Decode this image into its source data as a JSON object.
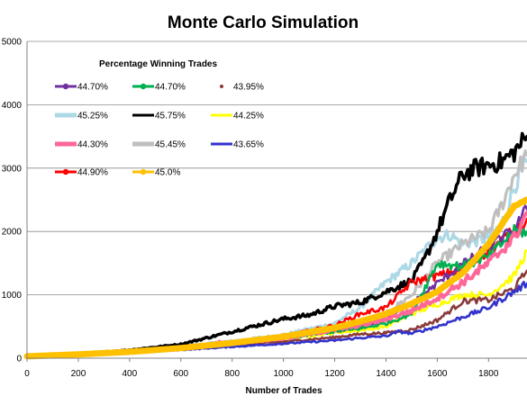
{
  "chart_data": {
    "type": "line",
    "title": "Monte Carlo Simulation",
    "xlabel": "Number of Trades",
    "ylabel": "",
    "xlim": [
      0,
      1950
    ],
    "ylim": [
      0,
      5000
    ],
    "x_ticks": [
      "0",
      "200",
      "400",
      "600",
      "800",
      "1000",
      "1200",
      "1400",
      "1600",
      "1800"
    ],
    "y_ticks": [
      "0",
      "1000",
      "2000",
      "3000",
      "4000",
      "5000"
    ],
    "grid": "horizontal",
    "legend": {
      "title": "Percentage Winning Trades",
      "placement": "top-left"
    },
    "series": [
      {
        "name": "44.70%",
        "color": "#7030A0",
        "marker": "circle",
        "x": [
          0,
          200,
          400,
          600,
          800,
          1000,
          1200,
          1300,
          1400,
          1500,
          1600,
          1700,
          1800,
          1900,
          1950
        ],
        "y": [
          30,
          60,
          100,
          160,
          240,
          330,
          430,
          490,
          620,
          850,
          1180,
          1480,
          1750,
          2020,
          2350
        ]
      },
      {
        "name": "44.70%",
        "color": "#00B050",
        "marker": "circle",
        "x": [
          0,
          200,
          400,
          600,
          800,
          1000,
          1200,
          1300,
          1400,
          1500,
          1600,
          1700,
          1800,
          1900,
          1950
        ],
        "y": [
          30,
          60,
          100,
          150,
          230,
          310,
          420,
          470,
          550,
          700,
          1500,
          1450,
          1600,
          2000,
          2000
        ]
      },
      {
        "name": "43.95%",
        "color": "#8B3A3A",
        "marker": "dot",
        "x": [
          0,
          200,
          400,
          600,
          800,
          1000,
          1200,
          1300,
          1400,
          1500,
          1600,
          1700,
          1800,
          1900,
          1950
        ],
        "y": [
          30,
          60,
          90,
          140,
          200,
          260,
          330,
          380,
          400,
          450,
          600,
          900,
          920,
          1100,
          1380
        ]
      },
      {
        "name": "45.25%",
        "color": "#ADD8E6",
        "marker": "none",
        "x": [
          0,
          200,
          400,
          600,
          800,
          1000,
          1200,
          1300,
          1400,
          1500,
          1550,
          1600,
          1650,
          1700,
          1800,
          1850,
          1900,
          1950
        ],
        "y": [
          30,
          70,
          120,
          190,
          270,
          370,
          550,
          800,
          1200,
          1500,
          1700,
          1900,
          1950,
          1800,
          1900,
          2100,
          2700,
          3100
        ]
      },
      {
        "name": "45.75%",
        "color": "#000000",
        "marker": "none",
        "x": [
          0,
          200,
          400,
          600,
          800,
          1000,
          1100,
          1200,
          1300,
          1400,
          1500,
          1550,
          1600,
          1650,
          1700,
          1750,
          1800,
          1850,
          1900,
          1950
        ],
        "y": [
          30,
          70,
          130,
          220,
          420,
          620,
          680,
          820,
          880,
          1050,
          1220,
          1550,
          2000,
          2500,
          2900,
          3000,
          3050,
          3100,
          3250,
          3500
        ]
      },
      {
        "name": "44.25%",
        "color": "#FFFF00",
        "marker": "none",
        "x": [
          0,
          200,
          400,
          600,
          800,
          1000,
          1200,
          1300,
          1400,
          1500,
          1600,
          1700,
          1800,
          1900,
          1950
        ],
        "y": [
          30,
          60,
          100,
          150,
          220,
          300,
          400,
          440,
          500,
          700,
          850,
          1000,
          1000,
          1300,
          1700
        ]
      },
      {
        "name": "44.30%",
        "color": "#FF6699",
        "marker": "none",
        "x": [
          0,
          200,
          400,
          600,
          700,
          750,
          800,
          1000,
          1200,
          1300,
          1400,
          1500,
          1600,
          1700,
          1800,
          1900,
          1950
        ],
        "y": [
          30,
          60,
          100,
          160,
          200,
          250,
          240,
          310,
          450,
          520,
          620,
          750,
          950,
          1200,
          1500,
          1900,
          2300
        ]
      },
      {
        "name": "45.45%",
        "color": "#BFBFBF",
        "marker": "none",
        "x": [
          0,
          200,
          400,
          600,
          800,
          1000,
          1200,
          1300,
          1400,
          1500,
          1600,
          1700,
          1800,
          1850,
          1900,
          1950
        ],
        "y": [
          30,
          60,
          110,
          180,
          250,
          330,
          480,
          560,
          700,
          1000,
          1500,
          1800,
          2000,
          2400,
          2900,
          3200
        ]
      },
      {
        "name": "43.65%",
        "color": "#3333CC",
        "marker": "none",
        "x": [
          0,
          200,
          400,
          600,
          800,
          1000,
          1200,
          1300,
          1400,
          1450,
          1500,
          1600,
          1700,
          1800,
          1900,
          1950
        ],
        "y": [
          30,
          60,
          90,
          130,
          180,
          230,
          280,
          320,
          350,
          420,
          390,
          500,
          650,
          800,
          1050,
          1180
        ]
      },
      {
        "name": "44.90%",
        "color": "#FF0000",
        "marker": "circle",
        "x": [
          0,
          200,
          400,
          600,
          800,
          1000,
          1200,
          1300,
          1400,
          1500,
          1600,
          1700,
          1800,
          1900,
          1950
        ],
        "y": [
          30,
          60,
          110,
          170,
          250,
          350,
          520,
          700,
          800,
          1200,
          1300,
          1400,
          1700,
          2000,
          2200
        ]
      },
      {
        "name": "45.0%",
        "color": "#FFC000",
        "marker": "circle",
        "x": [
          0,
          200,
          400,
          600,
          800,
          1000,
          1200,
          1300,
          1400,
          1500,
          1600,
          1700,
          1800,
          1900,
          1950
        ],
        "y": [
          30,
          60,
          100,
          160,
          240,
          340,
          480,
          580,
          700,
          860,
          1050,
          1350,
          1800,
          2400,
          2500
        ]
      }
    ]
  }
}
